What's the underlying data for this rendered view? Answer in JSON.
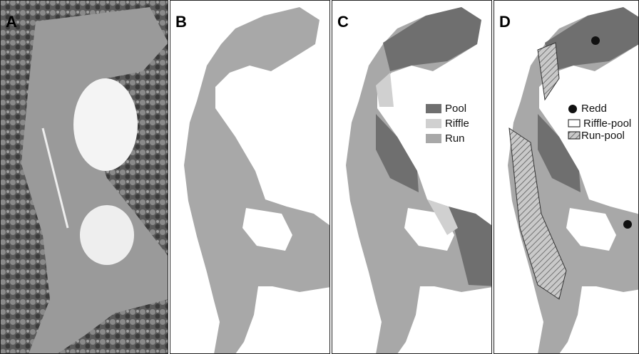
{
  "panels": [
    {
      "label": "A"
    },
    {
      "label": "B"
    },
    {
      "label": "C",
      "legend": [
        "Pool",
        "Riffle",
        "Run"
      ]
    },
    {
      "label": "D",
      "legend": [
        "Redd",
        "Riffle-pool",
        "Run-pool"
      ]
    }
  ]
}
